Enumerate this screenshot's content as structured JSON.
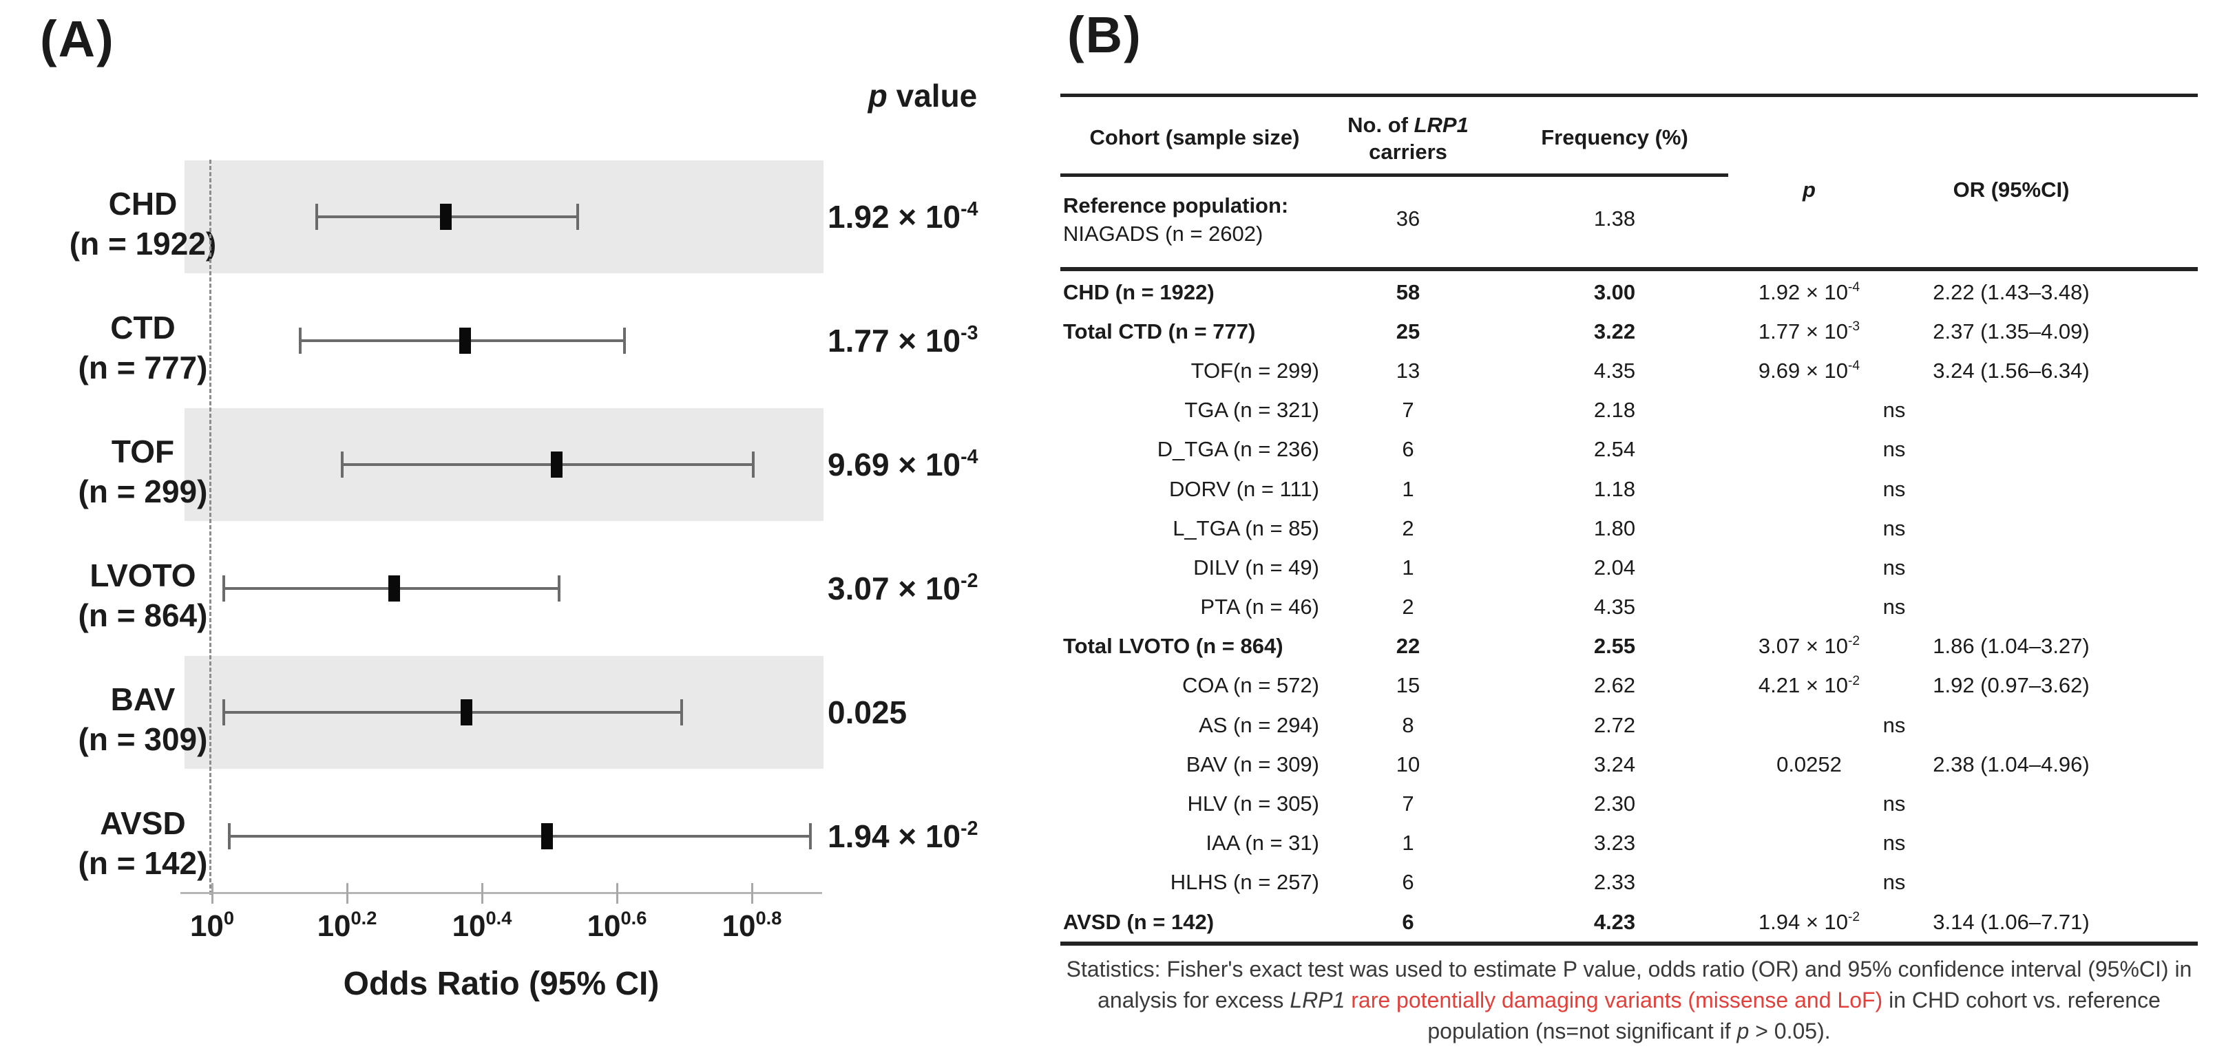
{
  "panel_a": {
    "label": "(A)",
    "p_header_italic": "p",
    "p_header_rest": " value",
    "x_axis_title": "Odds Ratio (95% CI)"
  },
  "chart_data": {
    "type": "forest",
    "title": "",
    "xlabel": "Odds Ratio (95% CI)",
    "x_scale": "log10",
    "xlim_log": [
      -0.045,
      0.9
    ],
    "reference_line_at": 1.0,
    "grid": false,
    "x_ticks": [
      {
        "base": "10",
        "exp": "0",
        "log": 0.0
      },
      {
        "base": "10",
        "exp": "0.2",
        "log": 0.2
      },
      {
        "base": "10",
        "exp": "0.4",
        "log": 0.4
      },
      {
        "base": "10",
        "exp": "0.6",
        "log": 0.6
      },
      {
        "base": "10",
        "exp": "0.8",
        "log": 0.8
      }
    ],
    "rows": [
      {
        "label": "CHD",
        "sublabel": "(n = 1922)",
        "n": 1922,
        "or": 2.22,
        "ci_low": 1.43,
        "ci_high": 3.48,
        "p_base": "1.92 × 10",
        "p_exp": "-4",
        "shaded": true
      },
      {
        "label": "CTD",
        "sublabel": "(n = 777)",
        "n": 777,
        "or": 2.37,
        "ci_low": 1.35,
        "ci_high": 4.09,
        "p_base": "1.77 × 10",
        "p_exp": "-3",
        "shaded": false
      },
      {
        "label": "TOF",
        "sublabel": "(n = 299)",
        "n": 299,
        "or": 3.24,
        "ci_low": 1.56,
        "ci_high": 6.34,
        "p_base": "9.69 × 10",
        "p_exp": "-4",
        "shaded": true
      },
      {
        "label": "LVOTO",
        "sublabel": "(n = 864)",
        "n": 864,
        "or": 1.86,
        "ci_low": 1.04,
        "ci_high": 3.27,
        "p_base": "3.07 × 10",
        "p_exp": "-2",
        "shaded": false
      },
      {
        "label": "BAV",
        "sublabel": "(n = 309)",
        "n": 309,
        "or": 2.38,
        "ci_low": 1.04,
        "ci_high": 4.96,
        "p_base": "0.025",
        "p_exp": "",
        "shaded": true
      },
      {
        "label": "AVSD",
        "sublabel": "(n = 142)",
        "n": 142,
        "or": 3.14,
        "ci_low": 1.06,
        "ci_high": 7.71,
        "p_base": "1.94 × 10",
        "p_exp": "-2",
        "shaded": false
      }
    ]
  },
  "panel_b": {
    "label": "(B)",
    "headers": {
      "cohort": "Cohort (sample size)",
      "carriers_prefix": "No. of ",
      "carriers_gene": "LRP1",
      "carriers_line2": "carriers",
      "frequency": "Frequency (%)",
      "p": "p",
      "or": "OR (95%CI)"
    },
    "reference_row": {
      "line1": "Reference population:",
      "line2": "NIAGADS (n = 2602)",
      "carriers": "36",
      "frequency": "1.38"
    },
    "ns_label": "ns",
    "rows": [
      {
        "cohort": "CHD (n = 1922)",
        "carriers": "58",
        "frequency": "3.00",
        "p_base": "1.92 × 10",
        "p_exp": "-4",
        "or": "2.22 (1.43–3.48)",
        "bold": true,
        "indent": false,
        "ns": false
      },
      {
        "cohort": "Total CTD (n = 777)",
        "carriers": "25",
        "frequency": "3.22",
        "p_base": "1.77 × 10",
        "p_exp": "-3",
        "or": "2.37 (1.35–4.09)",
        "bold": true,
        "indent": false,
        "ns": false
      },
      {
        "cohort": "TOF(n = 299)",
        "carriers": "13",
        "frequency": "4.35",
        "p_base": "9.69 × 10",
        "p_exp": "-4",
        "or": "3.24 (1.56–6.34)",
        "bold": false,
        "indent": true,
        "ns": false
      },
      {
        "cohort": "TGA (n = 321)",
        "carriers": "7",
        "frequency": "2.18",
        "p_base": "",
        "p_exp": "",
        "or": "",
        "bold": false,
        "indent": true,
        "ns": true
      },
      {
        "cohort": "D_TGA (n = 236)",
        "carriers": "6",
        "frequency": "2.54",
        "p_base": "",
        "p_exp": "",
        "or": "",
        "bold": false,
        "indent": true,
        "ns": true
      },
      {
        "cohort": "DORV (n = 111)",
        "carriers": "1",
        "frequency": "1.18",
        "p_base": "",
        "p_exp": "",
        "or": "",
        "bold": false,
        "indent": true,
        "ns": true
      },
      {
        "cohort": "L_TGA (n = 85)",
        "carriers": "2",
        "frequency": "1.80",
        "p_base": "",
        "p_exp": "",
        "or": "",
        "bold": false,
        "indent": true,
        "ns": true
      },
      {
        "cohort": "DILV (n = 49)",
        "carriers": "1",
        "frequency": "2.04",
        "p_base": "",
        "p_exp": "",
        "or": "",
        "bold": false,
        "indent": true,
        "ns": true
      },
      {
        "cohort": "PTA (n = 46)",
        "carriers": "2",
        "frequency": "4.35",
        "p_base": "",
        "p_exp": "",
        "or": "",
        "bold": false,
        "indent": true,
        "ns": true
      },
      {
        "cohort": "Total LVOTO (n = 864)",
        "carriers": "22",
        "frequency": "2.55",
        "p_base": "3.07 × 10",
        "p_exp": "-2",
        "or": "1.86 (1.04–3.27)",
        "bold": true,
        "indent": false,
        "ns": false
      },
      {
        "cohort": "COA (n = 572)",
        "carriers": "15",
        "frequency": "2.62",
        "p_base": "4.21 × 10",
        "p_exp": "-2",
        "or": "1.92 (0.97–3.62)",
        "bold": false,
        "indent": true,
        "ns": false
      },
      {
        "cohort": "AS (n = 294)",
        "carriers": "8",
        "frequency": "2.72",
        "p_base": "",
        "p_exp": "",
        "or": "",
        "bold": false,
        "indent": true,
        "ns": true
      },
      {
        "cohort": "BAV (n = 309)",
        "carriers": "10",
        "frequency": "3.24",
        "p_base": "0.0252",
        "p_exp": "",
        "or": "2.38 (1.04–4.96)",
        "bold": false,
        "indent": true,
        "ns": false
      },
      {
        "cohort": "HLV (n = 305)",
        "carriers": "7",
        "frequency": "2.30",
        "p_base": "",
        "p_exp": "",
        "or": "",
        "bold": false,
        "indent": true,
        "ns": true
      },
      {
        "cohort": "IAA (n = 31)",
        "carriers": "1",
        "frequency": "3.23",
        "p_base": "",
        "p_exp": "",
        "or": "",
        "bold": false,
        "indent": true,
        "ns": true
      },
      {
        "cohort": "HLHS (n = 257)",
        "carriers": "6",
        "frequency": "2.33",
        "p_base": "",
        "p_exp": "",
        "or": "",
        "bold": false,
        "indent": true,
        "ns": true
      },
      {
        "cohort": "AVSD (n = 142)",
        "carriers": "6",
        "frequency": "4.23",
        "p_base": "1.94 × 10",
        "p_exp": "-2",
        "or": "3.14 (1.06–7.71)",
        "bold": true,
        "indent": false,
        "ns": false
      }
    ],
    "caption_segments": [
      {
        "text": "Statistics: Fisher's exact test was used to estimate P value, odds ratio (OR) and 95% confidence interval (95%CI) in analysis for excess ",
        "style": "normal"
      },
      {
        "text": "LRP1",
        "style": "italic"
      },
      {
        "text": " ",
        "style": "normal"
      },
      {
        "text": "rare potentially damaging variants (missense and LoF)",
        "style": "red"
      },
      {
        "text": " in CHD cohort vs. reference population (ns=not significant if ",
        "style": "normal"
      },
      {
        "text": "p",
        "style": "italic"
      },
      {
        "text": " > 0.05).",
        "style": "normal"
      }
    ]
  },
  "colors": {
    "band_gray": "#e9e9e9",
    "ci_line": "#6b6b6b",
    "marker_black": "#0a0a0a",
    "axis_gray": "#b5b5b5",
    "dashed_reference": "#8d8d8d",
    "rule_dark": "#232323",
    "caption_red": "#e2403b"
  }
}
